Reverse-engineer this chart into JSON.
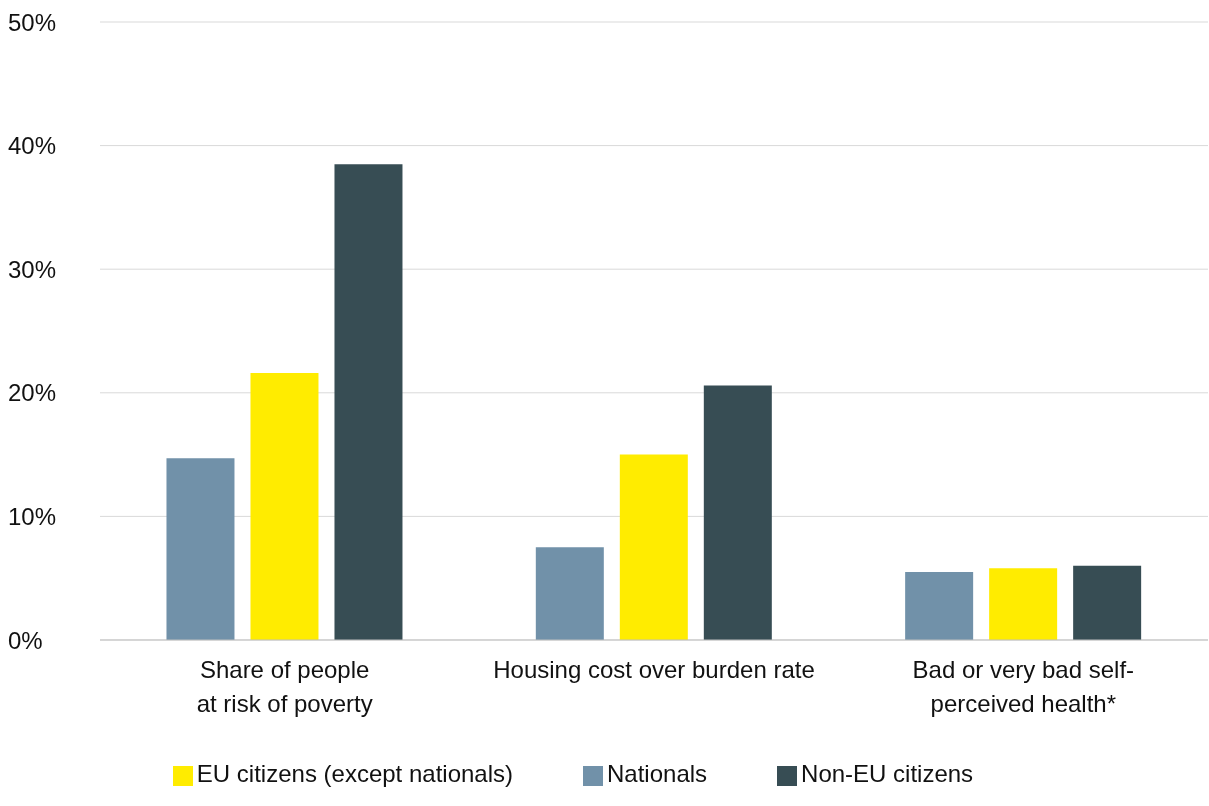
{
  "chart_data": {
    "type": "bar",
    "categories": [
      "Share of people\nat risk of poverty",
      "Housing cost over burden rate",
      "Bad or very bad self-\nperceived health*"
    ],
    "series": [
      {
        "name": "Nationals",
        "color": "#7191a9",
        "values": [
          14.7,
          7.5,
          5.5
        ]
      },
      {
        "name": "EU citizens (except nationals)",
        "color": "#ffec00",
        "values": [
          21.6,
          15.0,
          5.8
        ]
      },
      {
        "name": "Non-EU citizens",
        "color": "#374d54",
        "values": [
          38.5,
          20.6,
          6.0
        ]
      }
    ],
    "ylim": [
      0,
      50
    ],
    "yticks": [
      {
        "value": 0,
        "label": "0%"
      },
      {
        "value": 10,
        "label": "10%"
      },
      {
        "value": 20,
        "label": "20%"
      },
      {
        "value": 30,
        "label": "30%"
      },
      {
        "value": 40,
        "label": "40%"
      },
      {
        "value": 50,
        "label": "50%"
      }
    ],
    "grid": "y",
    "legend": "bottom"
  }
}
